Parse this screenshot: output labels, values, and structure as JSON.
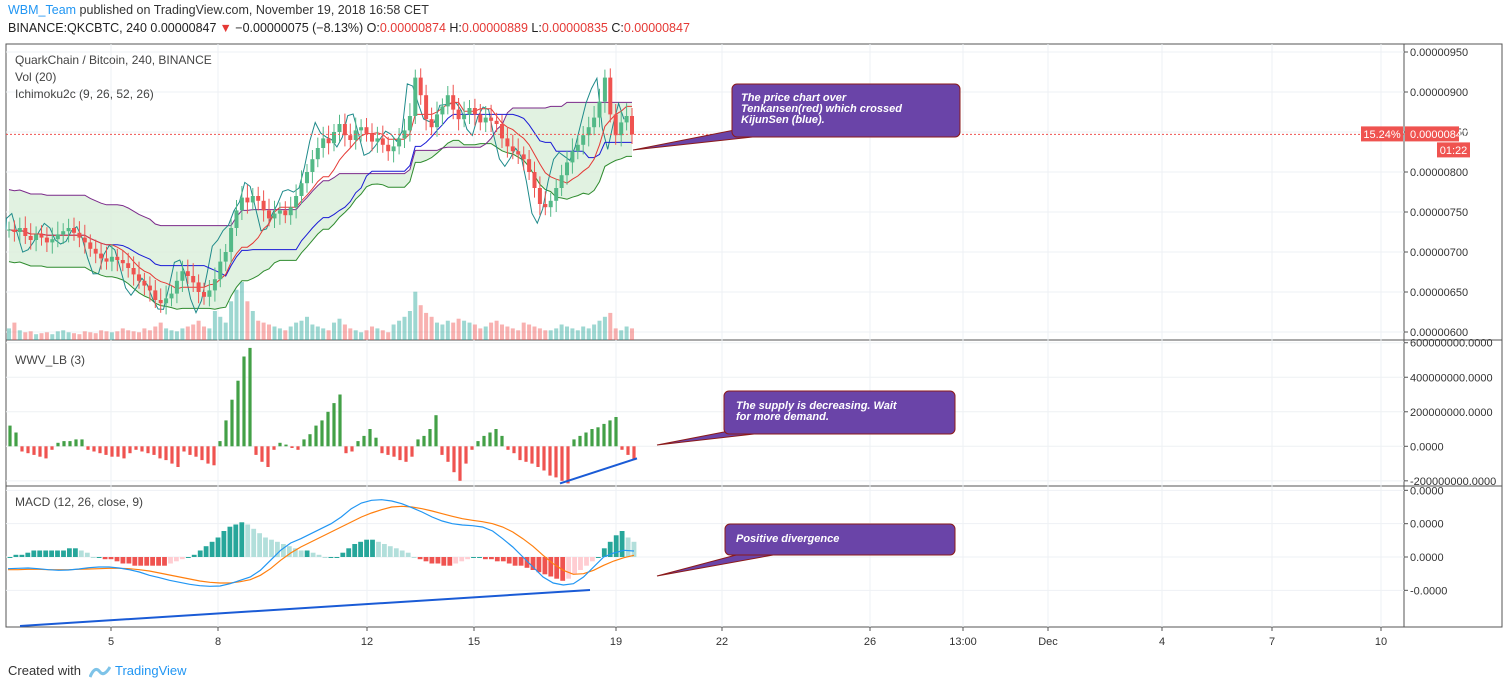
{
  "header": {
    "user": "WBM_Team",
    "published": " published on TradingView.com, November 19, 2018 16:58 CET",
    "symbol": "BINANCE:QKCBTC, 240",
    "last": " 0.00000847",
    "arrow": "▼",
    "change": " −0.00000075 (−8.13%)",
    "o_label": " O:",
    "o": "0.00000874",
    "h_label": " H:",
    "h": "0.00000889",
    "l_label": " L:",
    "l": "0.00000835",
    "c_label": " C:",
    "c": "0.00000847"
  },
  "footer": {
    "created": "Created with",
    "brand": "TradingView"
  },
  "colors": {
    "up": "#26a69a",
    "up_candle": "#53b987",
    "down": "#ef5350",
    "tenkan": "#e53935",
    "kijun": "#1a1ad6",
    "chikou": "#1e8a8a",
    "spanA": "#2e8b2e",
    "spanB": "#7b2a8a",
    "cloud": "#d9efd9",
    "macd": "#2196f3",
    "signal": "#ff7f0e",
    "note_bg": "#6a44a8",
    "note_border": "#8b1a1a",
    "trend": "#1a5bd6",
    "price_tag": "#ef5350"
  },
  "chart_data": [
    {
      "type": "candlestick",
      "legend": [
        "QuarkChain / Bitcoin, 240, BINANCE",
        "Vol (20)",
        "Ichimoku2c (9, 26, 52, 26)"
      ],
      "y_ticks": [
        "0.00000950",
        "0.00000900",
        "0.00000850",
        "0.00000800",
        "0.00000750",
        "0.00000700",
        "0.00000650",
        "0.00000600"
      ],
      "ylim": [
        5.9e-06,
        9.6e-06
      ],
      "last_price": "0.00000847",
      "price_change_tag": "15.24%",
      "countdown": "01:22",
      "closes": [
        7.28e-06,
        7.25e-06,
        7.3e-06,
        7.2e-06,
        7.15e-06,
        7.22e-06,
        7.18e-06,
        7.12e-06,
        7.16e-06,
        7.22e-06,
        7.26e-06,
        7.3e-06,
        7.24e-06,
        7.18e-06,
        7.12e-06,
        7.04e-06,
        6.98e-06,
        6.92e-06,
        6.88e-06,
        6.94e-06,
        6.9e-06,
        6.86e-06,
        6.8e-06,
        6.72e-06,
        6.64e-06,
        6.58e-06,
        6.52e-06,
        6.4e-06,
        6.36e-06,
        6.42e-06,
        6.48e-06,
        6.64e-06,
        6.76e-06,
        6.7e-06,
        6.62e-06,
        6.5e-06,
        6.44e-06,
        6.52e-06,
        6.66e-06,
        6.88e-06,
        7e-06,
        7.3e-06,
        7.52e-06,
        7.68e-06,
        7.62e-06,
        7.7e-06,
        7.64e-06,
        7.52e-06,
        7.42e-06,
        7.48e-06,
        7.52e-06,
        7.46e-06,
        7.56e-06,
        7.7e-06,
        7.86e-06,
        8e-06,
        8.16e-06,
        8.3e-06,
        8.42e-06,
        8.36e-06,
        8.5e-06,
        8.6e-06,
        8.46e-06,
        8.4e-06,
        8.52e-06,
        8.56e-06,
        8.48e-06,
        8.38e-06,
        8.42e-06,
        8.34e-06,
        8.26e-06,
        8.32e-06,
        8.42e-06,
        8.52e-06,
        8.7e-06,
        9.18e-06,
        8.96e-06,
        8.66e-06,
        8.56e-06,
        8.72e-06,
        8.82e-06,
        8.96e-06,
        8.78e-06,
        8.66e-06,
        8.72e-06,
        8.8e-06,
        8.72e-06,
        8.62e-06,
        8.68e-06,
        8.64e-06,
        8.6e-06,
        8.42e-06,
        8.32e-06,
        8.26e-06,
        8.22e-06,
        8.16e-06,
        8e-06,
        7.8e-06,
        7.6e-06,
        7.56e-06,
        7.64e-06,
        7.8e-06,
        7.96e-06,
        8.12e-06,
        8.26e-06,
        8.34e-06,
        8.46e-06,
        8.56e-06,
        8.68e-06,
        8.88e-06,
        9.18e-06,
        8.72e-06,
        8.46e-06,
        8.62e-06,
        8.7e-06,
        8.47e-06
      ],
      "volumes": [
        12,
        18,
        10,
        8,
        9,
        6,
        7,
        8,
        6,
        9,
        10,
        8,
        7,
        6,
        9,
        8,
        7,
        10,
        9,
        8,
        9,
        12,
        10,
        9,
        8,
        12,
        10,
        14,
        18,
        12,
        10,
        9,
        12,
        14,
        16,
        20,
        14,
        12,
        30,
        24,
        18,
        40,
        52,
        60,
        40,
        30,
        20,
        18,
        16,
        14,
        12,
        10,
        14,
        18,
        20,
        24,
        16,
        14,
        12,
        10,
        18,
        22,
        16,
        12,
        10,
        8,
        10,
        14,
        12,
        10,
        8,
        16,
        20,
        24,
        30,
        50,
        36,
        28,
        24,
        18,
        16,
        20,
        18,
        22,
        20,
        18,
        16,
        12,
        14,
        18,
        20,
        16,
        14,
        12,
        10,
        18,
        16,
        14,
        12,
        10,
        10,
        12,
        16,
        14,
        12,
        10,
        14,
        12,
        16,
        20,
        24,
        28,
        12,
        10,
        14,
        12
      ]
    },
    {
      "type": "bar",
      "legend": "WWV_LB (3)",
      "y_ticks": [
        "600000000.0000",
        "400000000.0000",
        "200000000.0000",
        "0.0000",
        "-200000000.0000"
      ],
      "ylim": [
        -230000000,
        610000000
      ],
      "values": [
        120,
        80,
        -30,
        -40,
        -50,
        -60,
        -70,
        -20,
        20,
        30,
        30,
        40,
        40,
        -20,
        -30,
        -40,
        -50,
        -60,
        -60,
        -70,
        -40,
        -20,
        -30,
        -40,
        -50,
        -70,
        -80,
        -100,
        -120,
        -30,
        -50,
        -60,
        -80,
        -100,
        -110,
        30,
        150,
        270,
        380,
        520,
        570,
        -50,
        -90,
        -120,
        -20,
        20,
        10,
        -10,
        -20,
        40,
        70,
        120,
        150,
        200,
        250,
        300,
        -40,
        -30,
        30,
        60,
        100,
        50,
        -40,
        -50,
        -60,
        -80,
        -90,
        -60,
        40,
        60,
        100,
        180,
        -50,
        -90,
        -150,
        -200,
        -100,
        -20,
        30,
        60,
        80,
        100,
        60,
        -20,
        -40,
        -80,
        -90,
        -100,
        -120,
        -140,
        -170,
        -180,
        -200,
        -215,
        40,
        60,
        80,
        100,
        110,
        130,
        150,
        170,
        -20,
        -50,
        -80
      ]
    },
    {
      "type": "bar+line",
      "legend": "MACD (12, 26, close, 9)",
      "y_ticks": [
        "0.0000",
        "0.0000",
        "0.0000",
        "-0.0000"
      ],
      "ylim": [
        -2.1e-07,
        2.1e-07
      ],
      "histogram": [
        0,
        1,
        1,
        2,
        3,
        3,
        3,
        3,
        3,
        3,
        4,
        4,
        3,
        2,
        0,
        0,
        -1,
        -1,
        -2,
        -3,
        -3,
        -4,
        -4,
        -4,
        -4,
        -4,
        -4,
        -3,
        -2,
        -1,
        0,
        1,
        3,
        5,
        7,
        9,
        12,
        14,
        15,
        16,
        15,
        13,
        11,
        9,
        8,
        7,
        6,
        5,
        4,
        3,
        3,
        2,
        1,
        0,
        0,
        0,
        2,
        4,
        6,
        7,
        8,
        8,
        7,
        6,
        5,
        4,
        3,
        2,
        0,
        -1,
        -2,
        -3,
        -3,
        -4,
        -4,
        -3,
        -2,
        -1,
        0,
        0,
        -1,
        -1,
        -2,
        -2,
        -3,
        -4,
        -4,
        -5,
        -6,
        -7,
        -8,
        -9,
        -10,
        -11,
        -10,
        -8,
        -6,
        -4,
        -2,
        0,
        4,
        7,
        10,
        12,
        9,
        7
      ],
      "macd": [
        -0.35,
        -0.34,
        -0.33,
        -0.35,
        -0.38,
        -0.4,
        -0.39,
        -0.36,
        -0.32,
        -0.3,
        -0.3,
        -0.33,
        -0.38,
        -0.45,
        -0.55,
        -0.62,
        -0.7,
        -0.76,
        -0.82,
        -0.86,
        -0.88,
        -0.87,
        -0.8,
        -0.7,
        -0.6,
        -0.4,
        -0.1,
        0.2,
        0.42,
        0.55,
        0.7,
        0.85,
        1.0,
        1.2,
        1.45,
        1.62,
        1.7,
        1.72,
        1.68,
        1.6,
        1.48,
        1.35,
        1.2,
        1.08,
        1.0,
        0.96,
        0.94,
        0.9,
        0.78,
        0.55,
        0.3,
        0.0,
        -0.3,
        -0.6,
        -0.78,
        -0.84,
        -0.8,
        -0.6,
        -0.3,
        0.0,
        0.12,
        0.2,
        0.18
      ],
      "signal": [
        -0.38,
        -0.38,
        -0.37,
        -0.37,
        -0.38,
        -0.38,
        -0.38,
        -0.37,
        -0.36,
        -0.35,
        -0.34,
        -0.34,
        -0.35,
        -0.38,
        -0.42,
        -0.48,
        -0.54,
        -0.6,
        -0.66,
        -0.72,
        -0.76,
        -0.78,
        -0.78,
        -0.74,
        -0.68,
        -0.55,
        -0.35,
        -0.1,
        0.12,
        0.3,
        0.45,
        0.6,
        0.75,
        0.9,
        1.05,
        1.2,
        1.32,
        1.42,
        1.5,
        1.52,
        1.5,
        1.45,
        1.38,
        1.3,
        1.22,
        1.15,
        1.1,
        1.06,
        1.0,
        0.9,
        0.75,
        0.55,
        0.32,
        0.05,
        -0.2,
        -0.4,
        -0.52,
        -0.5,
        -0.4,
        -0.25,
        -0.12,
        -0.02,
        0.05
      ]
    }
  ],
  "x_axis": [
    "5",
    "8",
    "12",
    "15",
    "19",
    "22",
    "26",
    "13:00",
    "Dec",
    "4",
    "7",
    "10"
  ],
  "notes": [
    "The price chart over Tenkansen(red) which crossed KijunSen (blue).",
    "The supply is decreasing. Wait for more demand.",
    "Positive divergence"
  ]
}
